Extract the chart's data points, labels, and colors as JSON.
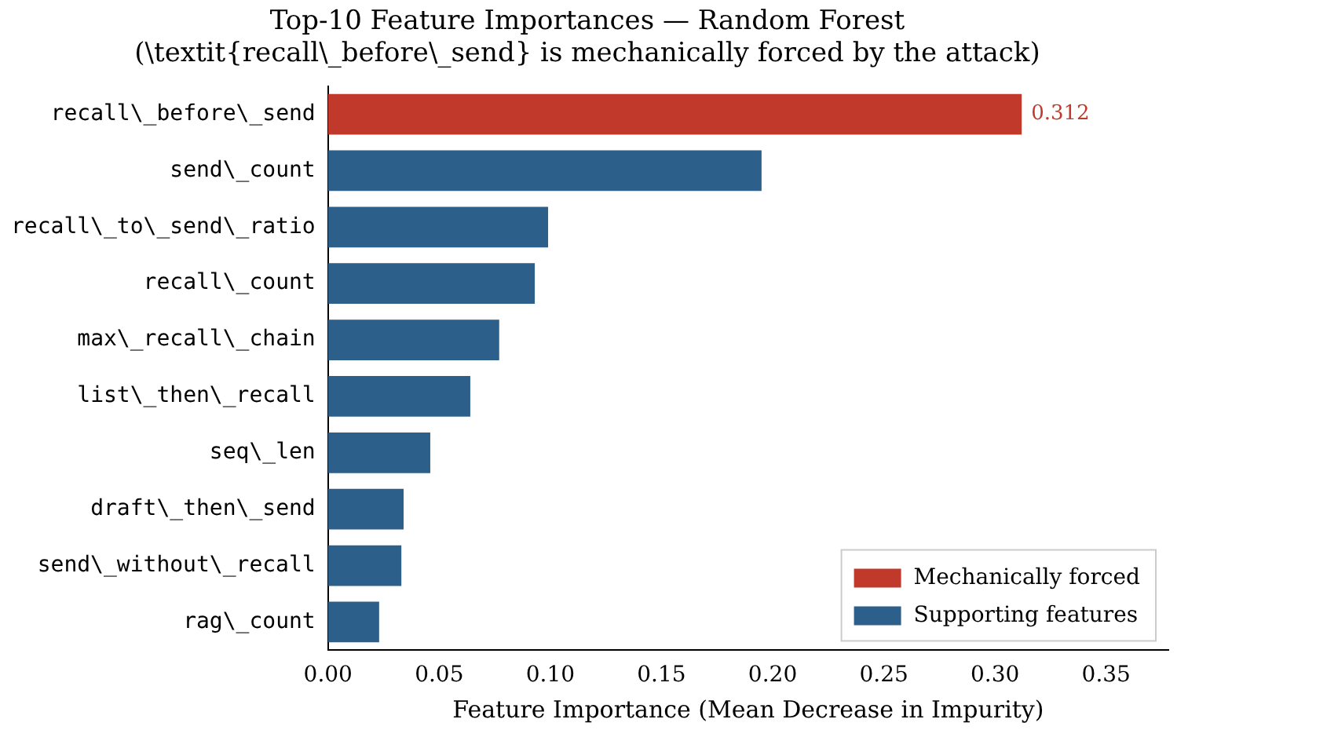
{
  "chart_data": {
    "type": "bar",
    "orientation": "horizontal",
    "stacked": true,
    "title": "Top-10 Feature Importances — Random Forest",
    "subtitle": "(\\textit{recall\\_before\\_send} is mechanically forced by the attack)",
    "xlabel": "Feature Importance (Mean Decrease in Impurity)",
    "categories": [
      "recall\\_before\\_send",
      "send\\_count",
      "recall\\_to\\_send\\_ratio",
      "recall\\_count",
      "max\\_recall\\_chain",
      "list\\_then\\_recall",
      "seq\\_len",
      "draft\\_then\\_send",
      "send\\_without\\_recall",
      "rag\\_count"
    ],
    "series": [
      {
        "name": "Mechanically forced",
        "color": "#c0392b",
        "values": [
          0.312,
          null,
          null,
          null,
          null,
          null,
          null,
          null,
          null,
          null
        ],
        "value_labels": [
          "0.312",
          null,
          null,
          null,
          null,
          null,
          null,
          null,
          null,
          null
        ]
      },
      {
        "name": "Supporting features",
        "color": "#2c5f8a",
        "values": [
          null,
          0.195,
          0.099,
          0.093,
          0.077,
          0.064,
          0.046,
          0.034,
          0.033,
          0.023
        ]
      }
    ],
    "xlim": [
      0,
      0.378
    ],
    "xticks": [
      {
        "value": 0,
        "label": "0.00"
      },
      {
        "value": 0.05,
        "label": "0.05"
      },
      {
        "value": 0.1,
        "label": "0.10"
      },
      {
        "value": 0.15,
        "label": "0.15"
      },
      {
        "value": 0.2,
        "label": "0.20"
      },
      {
        "value": 0.25,
        "label": "0.25"
      },
      {
        "value": 0.3,
        "label": "0.30"
      },
      {
        "value": 0.35,
        "label": "0.35"
      }
    ],
    "grid": false,
    "legend": "bottom right"
  }
}
